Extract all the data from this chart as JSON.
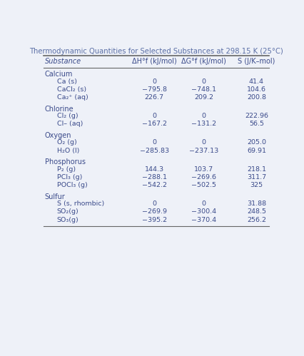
{
  "title": "Thermodynamic Quantities for Selected Substances at 298.15 K (25°C)",
  "title_color": "#5b6fa6",
  "col_headers": [
    "Substance",
    "ΔH°f (kJ/mol)",
    "ΔG°f (kJ/mol)",
    "S (J/K–mol)"
  ],
  "background_color": "#eef1f8",
  "text_color": "#3a4a8a",
  "groups": [
    {
      "group_name": "Calcium",
      "rows": [
        {
          "substance": "Ca (s)",
          "dH": "0",
          "dG": "0",
          "S": "41.4",
          "dH_zero": true,
          "dG_zero": true
        },
        {
          "substance": "CaCl₂ (s)",
          "dH": "−795.8",
          "dG": "−748.1",
          "S": "104.6",
          "dH_zero": false,
          "dG_zero": false
        },
        {
          "substance": "Ca₂⁺ (aq)",
          "dH": "226.7",
          "dG": "209.2",
          "S": "200.8",
          "dH_zero": false,
          "dG_zero": false
        }
      ]
    },
    {
      "group_name": "Chlorine",
      "rows": [
        {
          "substance": "Cl₂ (g)",
          "dH": "0",
          "dG": "0",
          "S": "222.96",
          "dH_zero": true,
          "dG_zero": true
        },
        {
          "substance": "Cl– (aq)",
          "dH": "−167.2",
          "dG": "−131.2",
          "S": "56.5",
          "dH_zero": false,
          "dG_zero": false
        }
      ]
    },
    {
      "group_name": "Oxygen",
      "rows": [
        {
          "substance": "O₂ (g)",
          "dH": "0",
          "dG": "0",
          "S": "205.0",
          "dH_zero": true,
          "dG_zero": true
        },
        {
          "substance": "H₂O (l)",
          "dH": "−285.83",
          "dG": "−237.13",
          "S": "69.91",
          "dH_zero": false,
          "dG_zero": false
        }
      ]
    },
    {
      "group_name": "Phosphorus",
      "rows": [
        {
          "substance": "P₂ (g)",
          "dH": "144.3",
          "dG": "103.7",
          "S": "218.1",
          "dH_zero": false,
          "dG_zero": false
        },
        {
          "substance": "PCl₃ (g)",
          "dH": "−288.1",
          "dG": "−269.6",
          "S": "311.7",
          "dH_zero": false,
          "dG_zero": false
        },
        {
          "substance": "POCl₃ (g)",
          "dH": "−542.2",
          "dG": "−502.5",
          "S": "325",
          "dH_zero": false,
          "dG_zero": false
        }
      ]
    },
    {
      "group_name": "Sulfur",
      "rows": [
        {
          "substance": "S (s, rhombic)",
          "dH": "0",
          "dG": "0",
          "S": "31.88",
          "dH_zero": true,
          "dG_zero": true
        },
        {
          "substance": "SO₂(g)",
          "dH": "−269.9",
          "dG": "−300.4",
          "S": "248.5",
          "dH_zero": false,
          "dG_zero": false
        },
        {
          "substance": "SO₃(g)",
          "dH": "−395.2",
          "dG": "−370.4",
          "S": "256.2",
          "dH_zero": false,
          "dG_zero": false
        }
      ]
    }
  ]
}
